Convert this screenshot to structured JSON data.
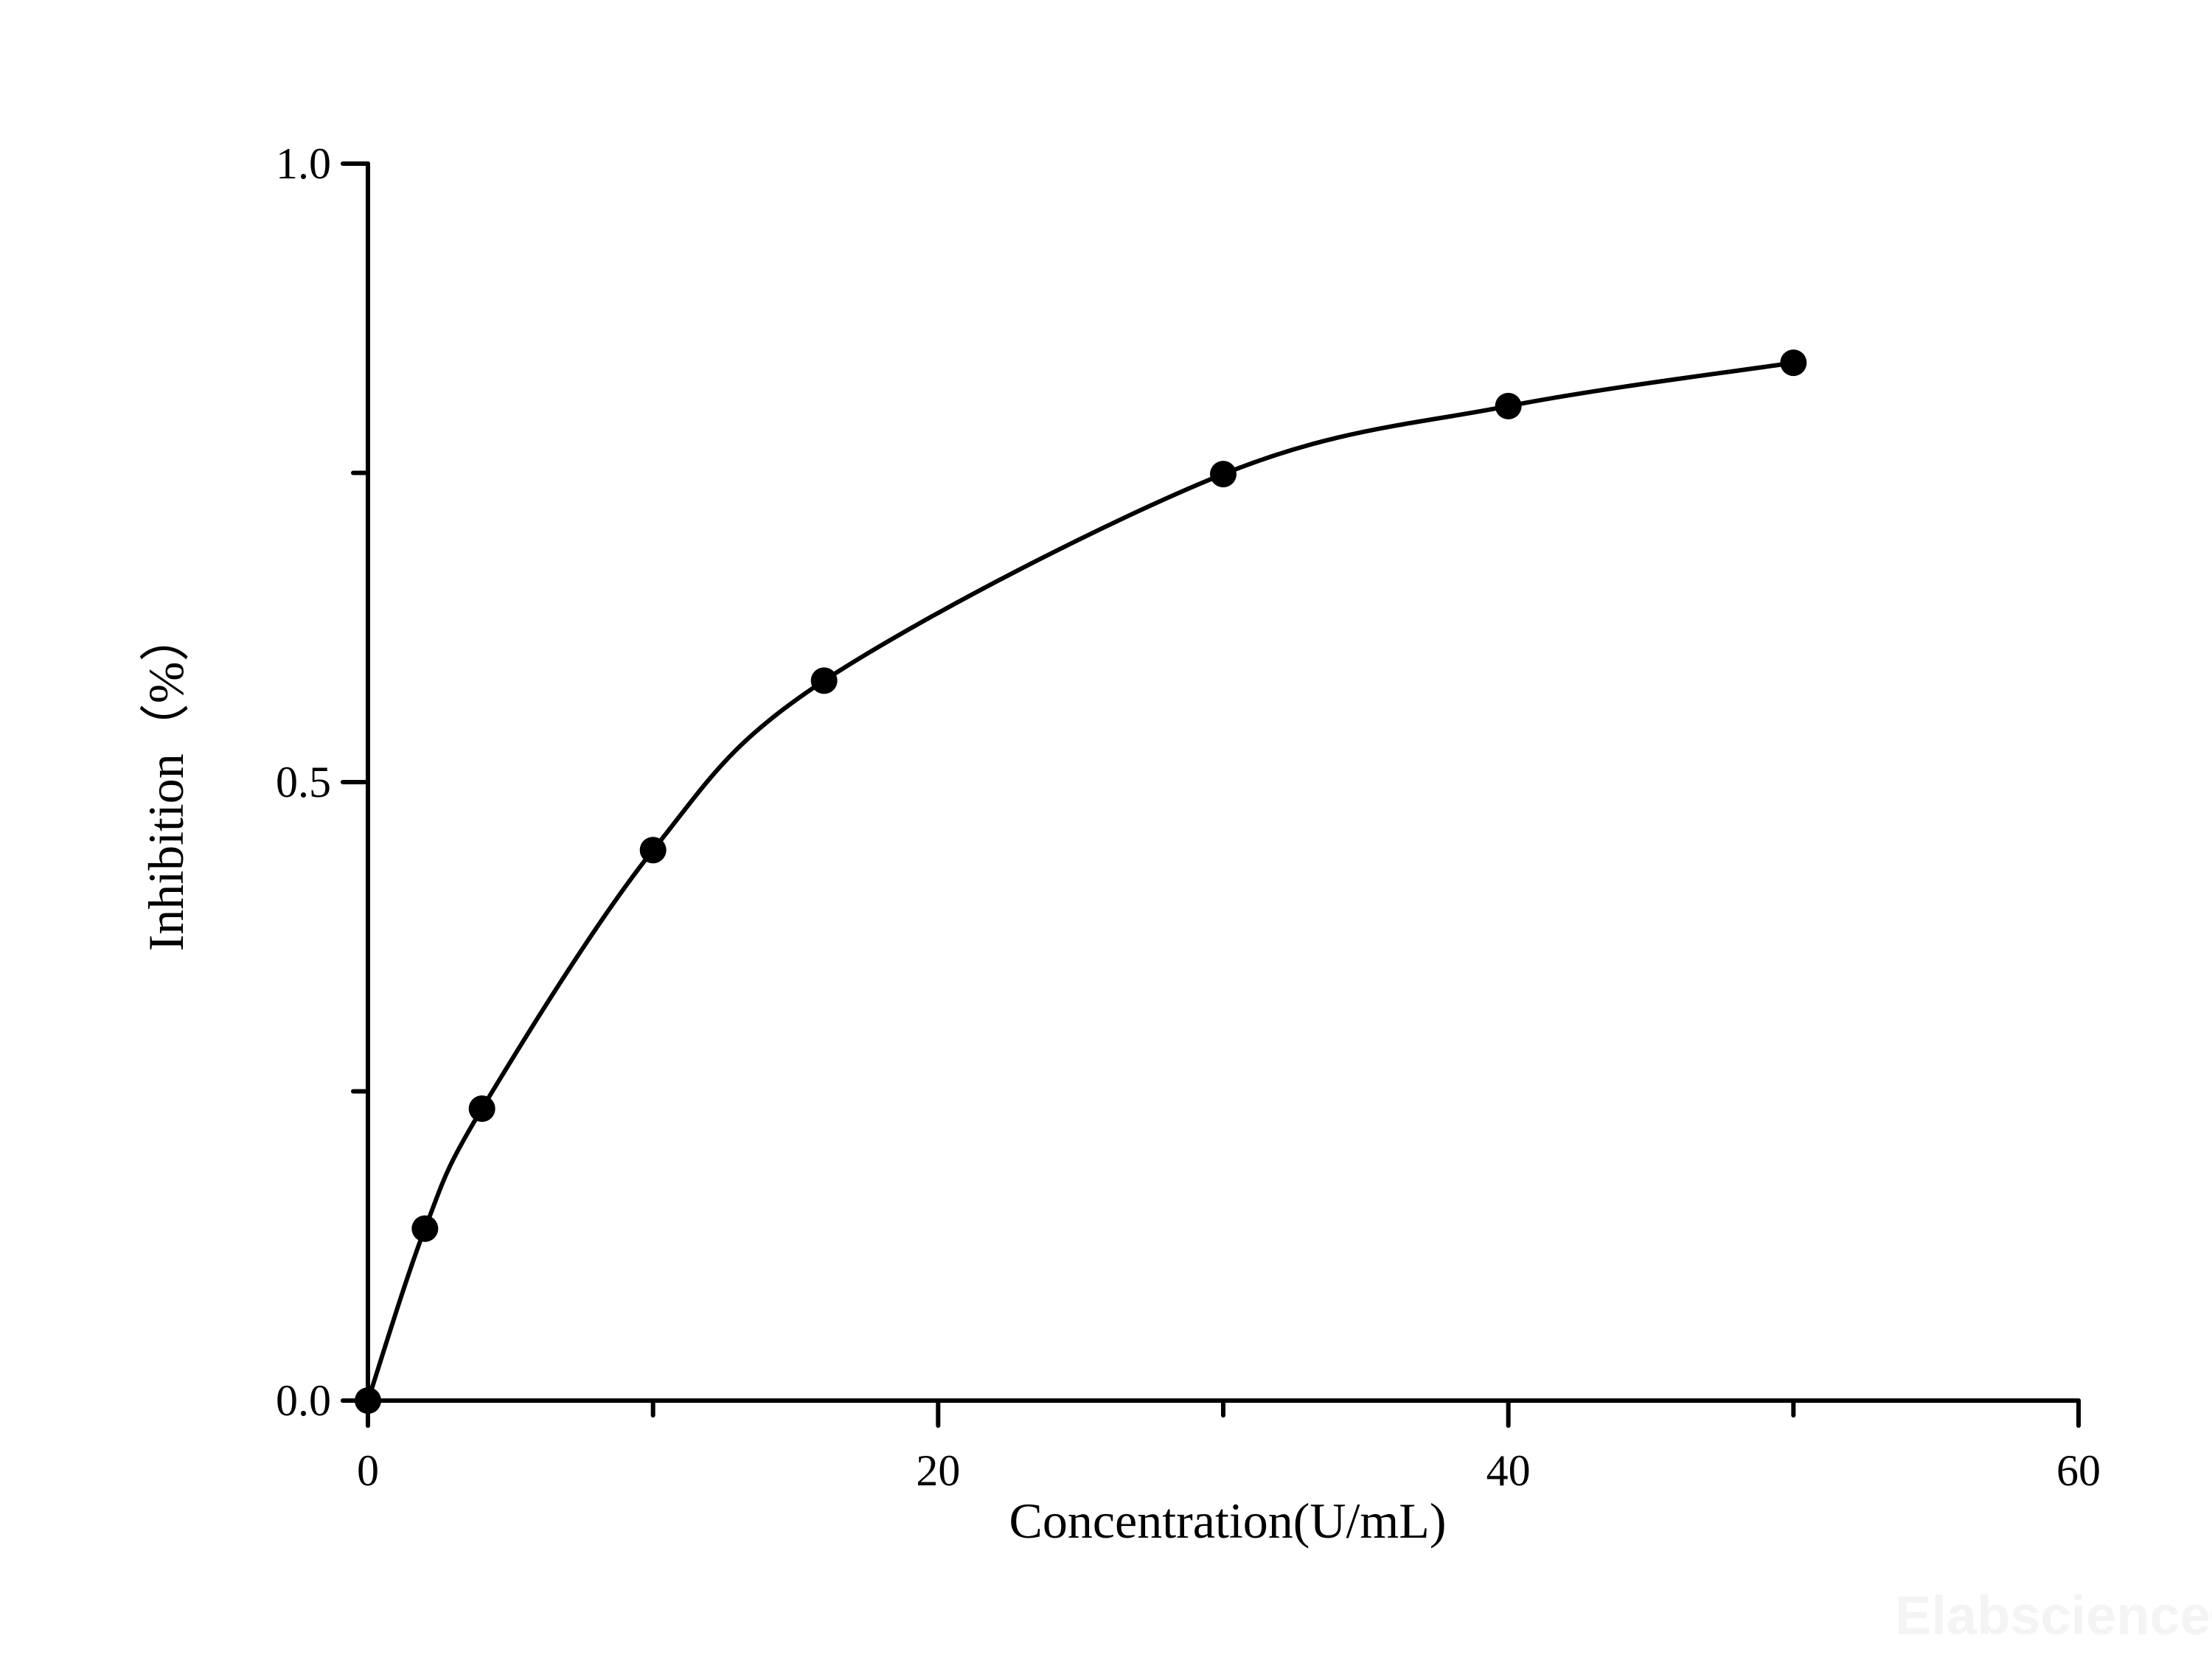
{
  "chart_data": {
    "type": "scatter",
    "title": "",
    "xlabel": "Concentration(U/mL)",
    "ylabel": "Inhibition（%）",
    "xlim": [
      0,
      60
    ],
    "ylim": [
      0,
      1.0
    ],
    "x_ticks": [
      0,
      20,
      40,
      60
    ],
    "x_tick_labels": [
      "0",
      "20",
      "40",
      "60"
    ],
    "x_minor_ticks": [
      10,
      30,
      50
    ],
    "y_ticks": [
      0,
      0.5,
      1.0
    ],
    "y_tick_labels": [
      "0.0",
      "0.5",
      "1.0"
    ],
    "y_minor_ticks": [
      0.25,
      0.75
    ],
    "grid": false,
    "series": [
      {
        "name": "Inhibition",
        "x": [
          0,
          2,
          4,
          10,
          16,
          30,
          40,
          50
        ],
        "y": [
          0.0,
          0.139,
          0.236,
          0.445,
          0.582,
          0.749,
          0.804,
          0.839
        ],
        "marker": "filled-circle",
        "line": "smooth-fit",
        "color": "#000000"
      }
    ]
  },
  "watermark": "Elabscience®"
}
